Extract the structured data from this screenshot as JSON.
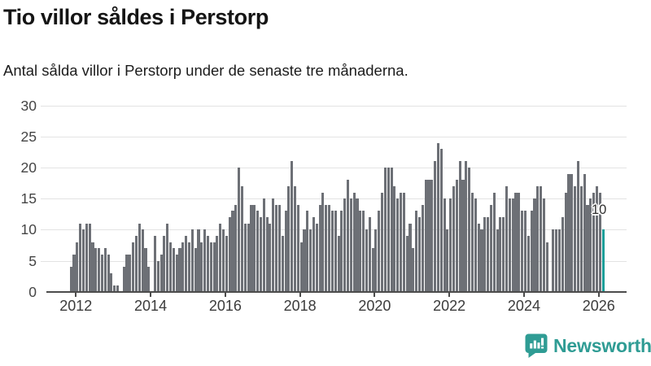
{
  "header": {
    "title": "Tio villor såldes i Perstorp",
    "subtitle": "Antal sålda villor i Perstorp under de senaste tre månaderna."
  },
  "chart_data": {
    "type": "bar",
    "title": "Tio villor såldes i Perstorp",
    "subtitle": "Antal sålda villor i Perstorp under de senaste tre månaderna.",
    "x_start_month": "2011-11",
    "x_end_month": "2026-02",
    "x_tick_labels": [
      "2012",
      "2014",
      "2016",
      "2018",
      "2020",
      "2022",
      "2024",
      "2026"
    ],
    "y_tick_labels": [
      0,
      5,
      10,
      15,
      20,
      25,
      30
    ],
    "ylim": [
      0,
      30
    ],
    "grid": true,
    "legend_position": "none",
    "bar_color": "#6d7076",
    "highlight_color": "#1b9e99",
    "highlight_last_bar": true,
    "last_bar_label": "10",
    "values": [
      4,
      6,
      8,
      11,
      10,
      11,
      11,
      8,
      7,
      7,
      6,
      7,
      6,
      3,
      1,
      1,
      0,
      4,
      6,
      6,
      8,
      9,
      11,
      10,
      7,
      4,
      0,
      9,
      5,
      6,
      9,
      11,
      8,
      7,
      6,
      7,
      8,
      9,
      8,
      10,
      7,
      10,
      8,
      10,
      9,
      8,
      8,
      9,
      11,
      10,
      9,
      12,
      13,
      14,
      20,
      17,
      11,
      11,
      14,
      14,
      13,
      12,
      15,
      12,
      11,
      15,
      14,
      14,
      9,
      13,
      17,
      21,
      17,
      14,
      8,
      10,
      13,
      10,
      12,
      11,
      14,
      16,
      14,
      14,
      13,
      13,
      9,
      13,
      15,
      18,
      15,
      16,
      15,
      13,
      13,
      10,
      12,
      7,
      10,
      13,
      16,
      20,
      20,
      20,
      17,
      15,
      16,
      16,
      9,
      11,
      7,
      13,
      12,
      14,
      18,
      18,
      18,
      21,
      24,
      23,
      15,
      10,
      15,
      17,
      18,
      21,
      18,
      21,
      20,
      16,
      15,
      11,
      10,
      12,
      12,
      14,
      16,
      10,
      12,
      12,
      17,
      15,
      15,
      16,
      16,
      13,
      13,
      9,
      13,
      15,
      17,
      17,
      15,
      8,
      0,
      10,
      10,
      10,
      12,
      16,
      19,
      19,
      17,
      21,
      17,
      19,
      14,
      15,
      16,
      17,
      16,
      10
    ]
  },
  "footer": {
    "brand": "Newsworthy",
    "brand_color": "#2f9c94"
  }
}
